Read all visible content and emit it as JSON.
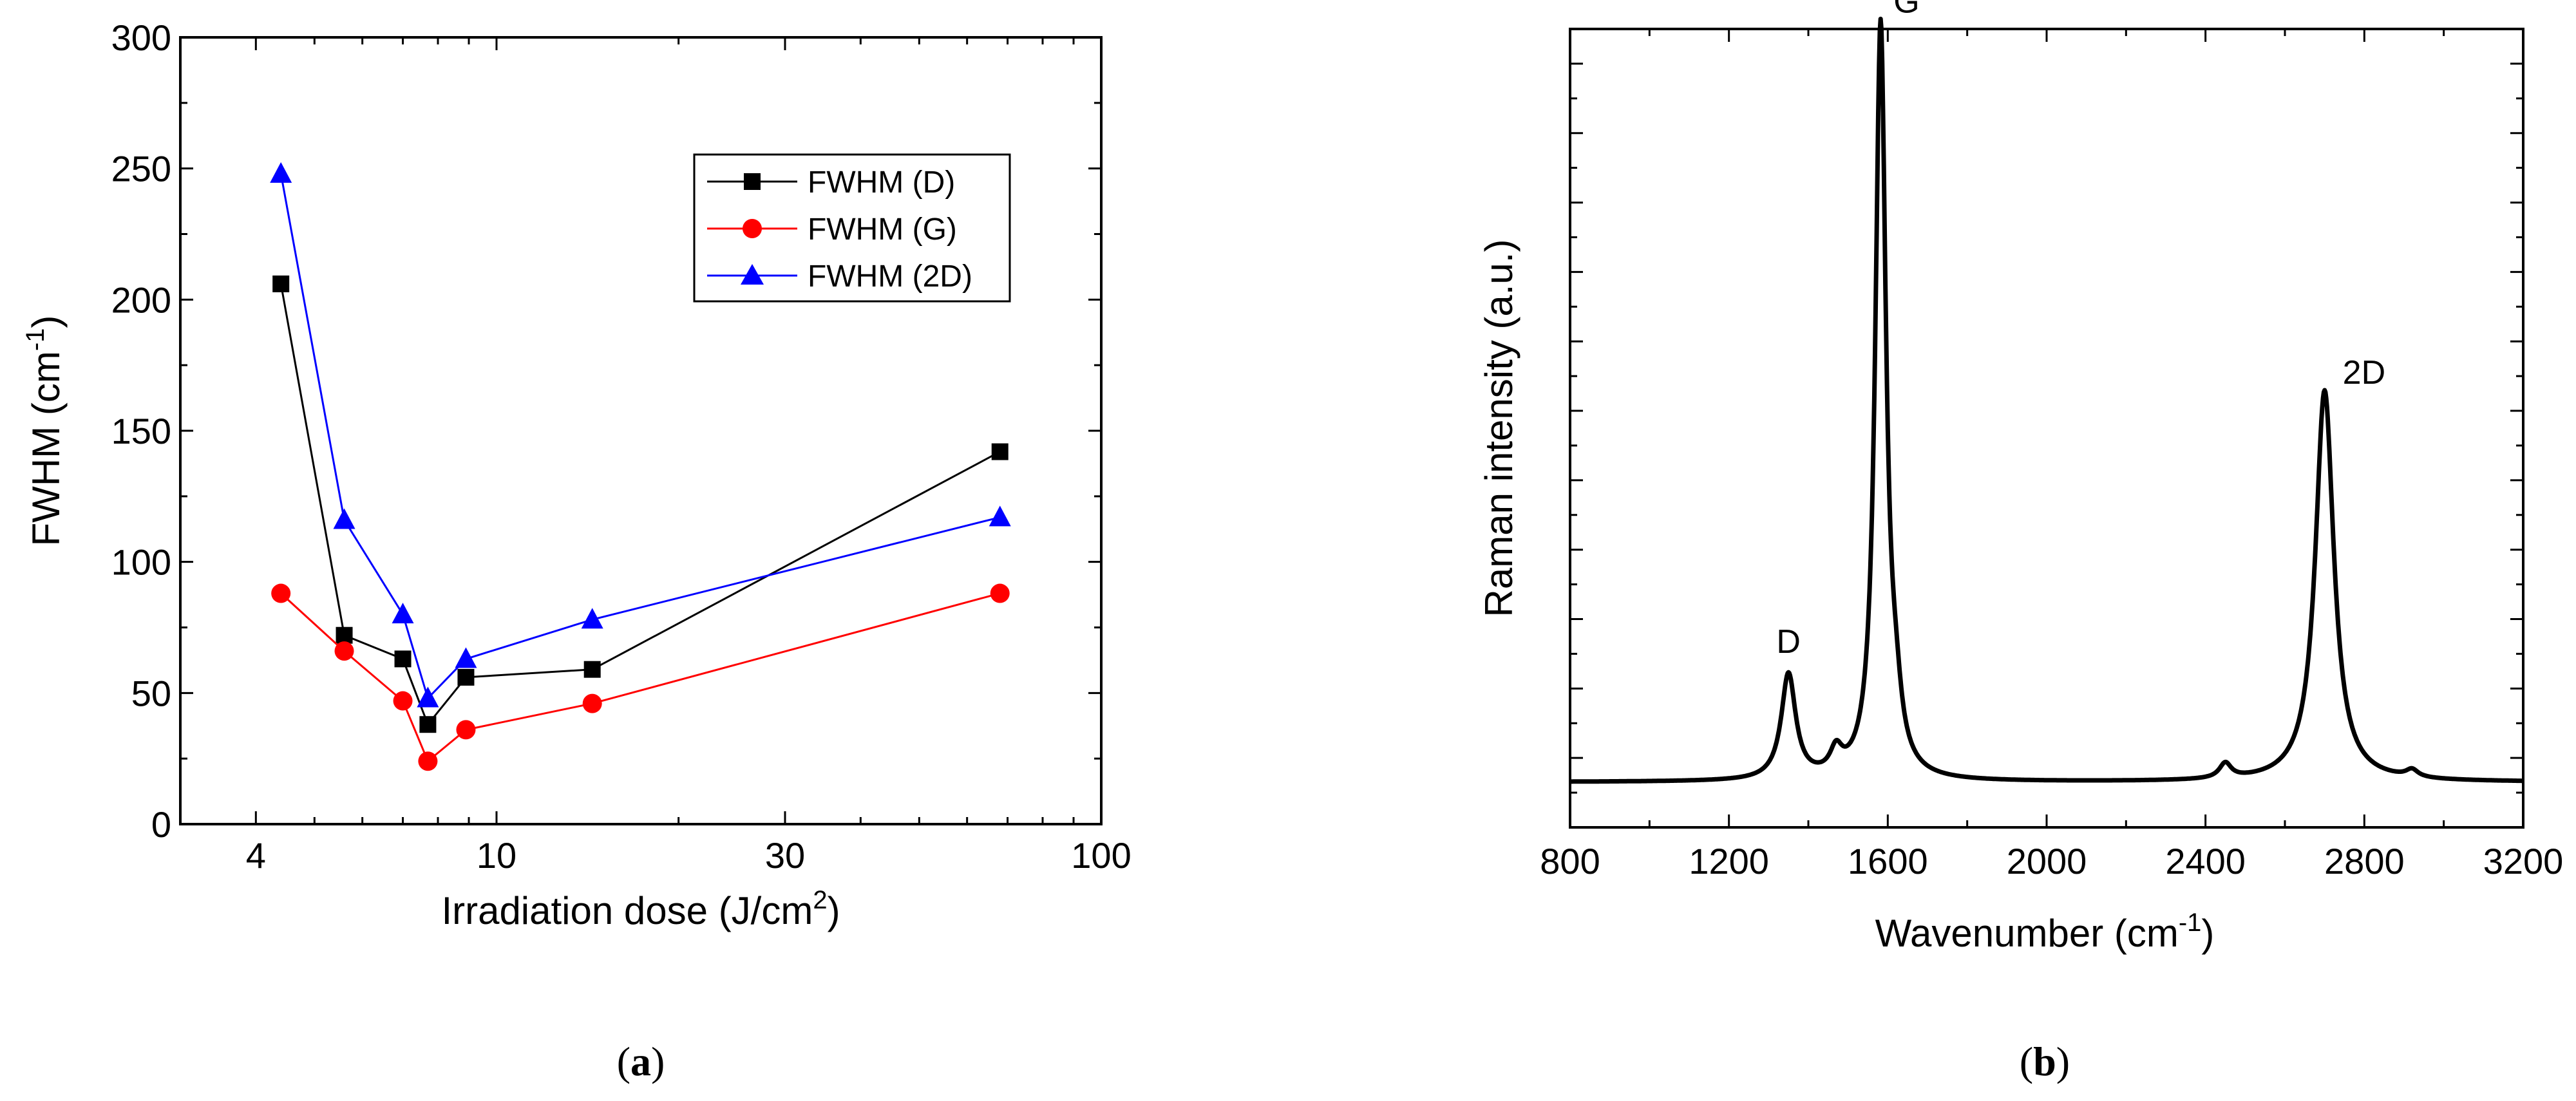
{
  "chart_data": [
    {
      "type": "line",
      "panel": "a",
      "caption_letter": "a",
      "xlabel_main": "Irradiation dose (J/cm",
      "xlabel_sup": "2",
      "xlabel_end": ")",
      "ylabel_main": "FWHM (cm",
      "ylabel_sup": "-1",
      "ylabel_end": ")",
      "xscale": "log",
      "xlim": [
        3,
        100
      ],
      "ylim": [
        0,
        300
      ],
      "xticks": [
        4,
        10,
        30,
        100
      ],
      "xtick_labels": [
        "4",
        "10",
        "30",
        "100"
      ],
      "yticks": [
        0,
        50,
        100,
        150,
        200,
        250,
        300
      ],
      "ytick_labels": [
        "0",
        "50",
        "100",
        "150",
        "200",
        "250",
        "300"
      ],
      "legend_position": "upper-right",
      "series": [
        {
          "name": "FWHM (D)",
          "color": "#000000",
          "marker": "square",
          "x": [
            4.4,
            5.6,
            7.0,
            7.7,
            8.9,
            14.4,
            68
          ],
          "y": [
            206,
            72,
            63,
            38,
            56,
            59,
            142
          ]
        },
        {
          "name": "FWHM (G)",
          "color": "#ff0000",
          "marker": "circle",
          "x": [
            4.4,
            5.6,
            7.0,
            7.7,
            8.9,
            14.4,
            68
          ],
          "y": [
            88,
            66,
            47,
            24,
            36,
            46,
            88
          ]
        },
        {
          "name": "FWHM (2D)",
          "color": "#0000ff",
          "marker": "triangle",
          "x": [
            4.4,
            5.6,
            7.0,
            7.7,
            8.9,
            14.4,
            68
          ],
          "y": [
            248,
            116,
            80,
            48,
            63,
            78,
            117
          ]
        }
      ]
    },
    {
      "type": "line",
      "panel": "b",
      "caption_letter": "b",
      "xlabel_main": "Wavenumber (cm",
      "xlabel_sup": "-1",
      "xlabel_end": ")",
      "ylabel": "Raman intensity (a.u.)",
      "xlim": [
        800,
        3200
      ],
      "ylim": [
        -0.06,
        1.0
      ],
      "xticks": [
        800,
        1200,
        1600,
        2000,
        2400,
        2800,
        3200
      ],
      "xtick_labels": [
        "800",
        "1200",
        "1600",
        "2000",
        "2400",
        "2800",
        "3200"
      ],
      "color": "#000000",
      "baseline": 0.0,
      "peaks": [
        {
          "label": "D",
          "center": 1350,
          "height": 0.14,
          "width": 22
        },
        {
          "label": "G",
          "center": 1582,
          "height": 1.0,
          "width": 16
        },
        {
          "label": "2D",
          "center": 2700,
          "height": 0.52,
          "width": 28
        }
      ],
      "minor_features": [
        {
          "center": 1470,
          "height": 0.03
        },
        {
          "center": 1620,
          "height": 0.06
        },
        {
          "center": 2450,
          "height": 0.02
        },
        {
          "center": 2920,
          "height": 0.01
        }
      ]
    }
  ]
}
